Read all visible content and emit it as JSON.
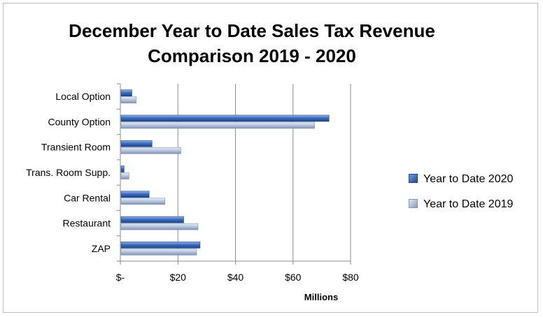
{
  "chart_data": {
    "type": "bar",
    "orientation": "horizontal",
    "title": "December Year to Date Sales Tax Revenue Comparison 2019 - 2020",
    "title_lines": [
      "December Year to Date Sales Tax Revenue",
      "Comparison 2019 - 2020"
    ],
    "xlabel": "Millions",
    "ylabel": "",
    "categories": [
      "Local Option",
      "County Option",
      "Transient Room",
      "Trans. Room Supp.",
      "Car Rental",
      "Restaurant",
      "ZAP"
    ],
    "series": [
      {
        "name": "Year to Date 2020",
        "values": [
          4,
          72.5,
          11,
          1.3,
          10,
          22,
          27.7
        ],
        "color": "#2e5fa8"
      },
      {
        "name": "Year to Date 2019",
        "values": [
          5.5,
          67.5,
          21,
          3,
          15.5,
          27,
          26.5
        ],
        "color": "#a9b9d3"
      }
    ],
    "xlim": [
      0,
      80
    ],
    "xticks": [
      0,
      20,
      40,
      60,
      80
    ],
    "xtick_labels": [
      "$-",
      "$20",
      "$40",
      "$60",
      "$80"
    ],
    "grid": true,
    "legend_position": "right"
  }
}
